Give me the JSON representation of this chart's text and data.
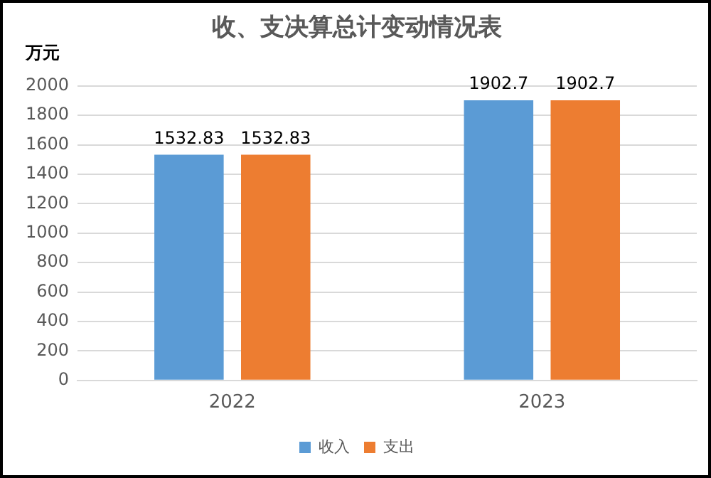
{
  "chart_data": {
    "type": "bar",
    "title": "收、支决算总计变动情况表",
    "ylabel": "万元",
    "categories": [
      "2022",
      "2023"
    ],
    "series": [
      {
        "name": "收入",
        "color": "#5b9bd5",
        "values": [
          1532.83,
          1902.7
        ]
      },
      {
        "name": "支出",
        "color": "#ed7d31",
        "values": [
          1532.83,
          1902.7
        ]
      }
    ],
    "ylim": [
      0,
      2000
    ],
    "yticks": [
      0,
      200,
      400,
      600,
      800,
      1000,
      1200,
      1400,
      1600,
      1800,
      2000
    ],
    "grid": "y",
    "legend": "bottom",
    "data_labels": true
  }
}
